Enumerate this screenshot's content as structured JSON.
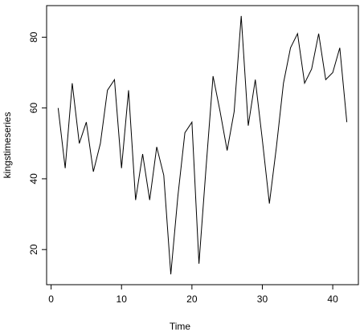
{
  "chart_data": {
    "type": "line",
    "x_label": "Time",
    "y_label": "kingstimeseries",
    "x": [
      1,
      2,
      3,
      4,
      5,
      6,
      7,
      8,
      9,
      10,
      11,
      12,
      13,
      14,
      15,
      16,
      17,
      18,
      19,
      20,
      21,
      22,
      23,
      24,
      25,
      26,
      27,
      28,
      29,
      30,
      31,
      32,
      33,
      34,
      35,
      36,
      37,
      38,
      39,
      40,
      41,
      42
    ],
    "series": [
      {
        "color": "#000000",
        "values": [
          60,
          43,
          67,
          50,
          56,
          42,
          50,
          65,
          68,
          43,
          65,
          34,
          47,
          34,
          49,
          41,
          13,
          35,
          53,
          56,
          16,
          43,
          69,
          59,
          48,
          59,
          86,
          55,
          68,
          51,
          33,
          49,
          67,
          77,
          81,
          67,
          71,
          81,
          68,
          70,
          77,
          56
        ]
      }
    ],
    "xlim": [
      -0.64,
      43.64
    ],
    "xticks": [
      0,
      10,
      20,
      30,
      40
    ],
    "ylim": [
      10.08,
      88.92
    ],
    "yticks": [
      20,
      40,
      60,
      80
    ]
  }
}
